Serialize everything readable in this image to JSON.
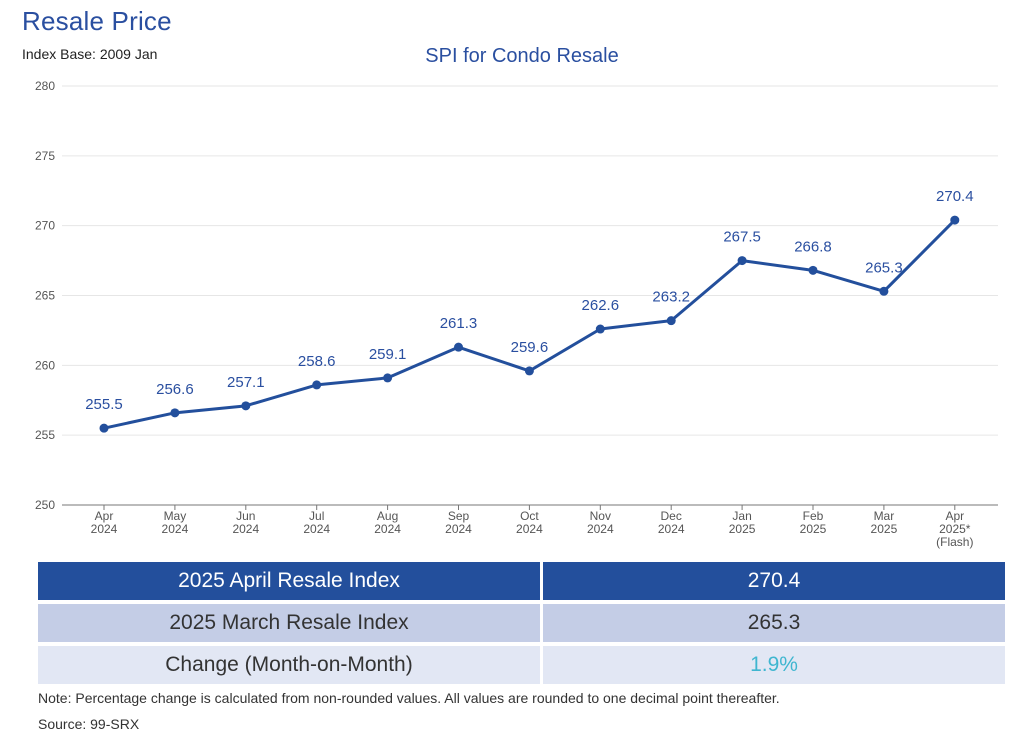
{
  "header": {
    "title": "Resale Price",
    "index_base": "Index Base: 2009 Jan"
  },
  "chart_data": {
    "type": "line",
    "title": "SPI for Condo Resale",
    "categories": [
      [
        "Apr",
        "2024"
      ],
      [
        "May",
        "2024"
      ],
      [
        "Jun",
        "2024"
      ],
      [
        "Jul",
        "2024"
      ],
      [
        "Aug",
        "2024"
      ],
      [
        "Sep",
        "2024"
      ],
      [
        "Oct",
        "2024"
      ],
      [
        "Nov",
        "2024"
      ],
      [
        "Dec",
        "2024"
      ],
      [
        "Jan",
        "2025"
      ],
      [
        "Feb",
        "2025"
      ],
      [
        "Mar",
        "2025"
      ],
      [
        "Apr",
        "2025*",
        "(Flash)"
      ]
    ],
    "values": [
      255.5,
      256.6,
      257.1,
      258.6,
      259.1,
      261.3,
      259.6,
      262.6,
      263.2,
      267.5,
      266.8,
      265.3,
      270.4
    ],
    "value_labels": [
      "255.5",
      "256.6",
      "257.1",
      "258.6",
      "259.1",
      "261.3",
      "259.6",
      "262.6",
      "263.2",
      "267.5",
      "266.8",
      "265.3",
      "270.4"
    ],
    "ylim": [
      250,
      280
    ],
    "yticks": [
      250,
      255,
      260,
      265,
      270,
      275,
      280
    ],
    "grid": true,
    "line_color": "#234f9c"
  },
  "summary_table": {
    "rows": [
      {
        "label": "2025 April Resale Index",
        "value": "270.4"
      },
      {
        "label": "2025 March Resale Index",
        "value": "265.3"
      },
      {
        "label": "Change (Month-on-Month)",
        "value": "1.9%"
      }
    ]
  },
  "footer": {
    "note": "Note: Percentage change is calculated from non-rounded values.  All values are rounded to one decimal point thereafter.",
    "source": "Source: 99-SRX"
  },
  "colors": {
    "accent": "#234f9c",
    "row_light": "#c4cde6",
    "row_lighter": "#e2e7f4",
    "change_value": "#3fb6d0"
  }
}
